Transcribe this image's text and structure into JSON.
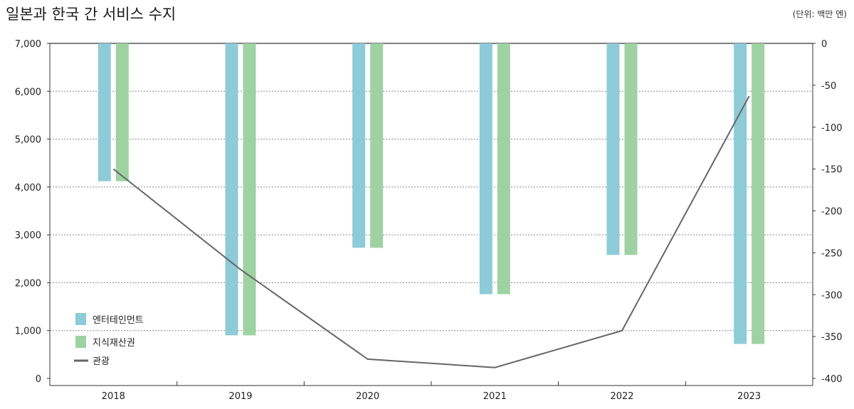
{
  "chart_data": {
    "type": "bar",
    "title": "일본과 한국 간 서비스 수지",
    "unit_label": "(단위: 백만 엔)",
    "categories": [
      "2018",
      "2019",
      "2020",
      "2021",
      "2022",
      "2023"
    ],
    "left_axis": {
      "ylim": [
        0,
        7000
      ],
      "ticks": [
        "0",
        "1,000",
        "2,000",
        "3,000",
        "4,000",
        "5,000",
        "6,000",
        "7,000"
      ],
      "tick_values": [
        0,
        1000,
        2000,
        3000,
        4000,
        5000,
        6000,
        7000
      ]
    },
    "right_axis": {
      "ylim": [
        -400,
        0
      ],
      "ticks": [
        "0",
        "-50",
        "-100",
        "-150",
        "-200",
        "-250",
        "-300",
        "-350",
        "-400"
      ],
      "tick_values": [
        0,
        -50,
        -100,
        -150,
        -200,
        -250,
        -300,
        -350,
        -400
      ]
    },
    "bars_hang_from_top": true,
    "grid": true,
    "legend_position": "bottom-left",
    "series": [
      {
        "name": "엔터테인먼트",
        "type": "bar",
        "axis": "left",
        "color": "#8ecbd8",
        "values": [
          4120,
          900,
          2730,
          1760,
          2580,
          720
        ]
      },
      {
        "name": "지식재산권",
        "type": "bar",
        "axis": "left",
        "color": "#9ed2a2",
        "values": [
          4120,
          900,
          2730,
          1760,
          2580,
          720
        ]
      },
      {
        "name": "관광",
        "type": "line",
        "axis": "right",
        "color": "#666666",
        "values": [
          -150,
          -270,
          -377,
          -387,
          -343,
          -63
        ]
      }
    ]
  }
}
